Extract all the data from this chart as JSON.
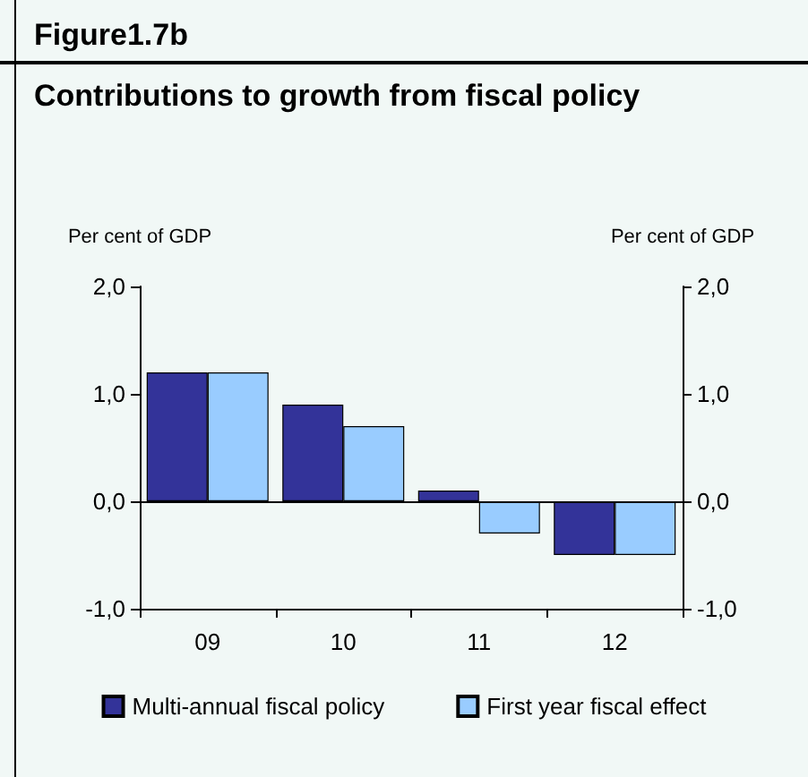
{
  "chart_data": {
    "type": "bar",
    "title": "Figure1.7b",
    "subtitle": "Contributions to growth from fiscal policy",
    "ylabel": "Per cent of GDP",
    "y2label": "Per cent of GDP",
    "categories": [
      "09",
      "10",
      "11",
      "12"
    ],
    "series": [
      {
        "name": "Multi-annual fiscal policy",
        "color": "#333399",
        "values": [
          1.2,
          0.9,
          0.1,
          -0.5
        ]
      },
      {
        "name": "First year fiscal effect",
        "color": "#99ccff",
        "values": [
          1.2,
          0.7,
          -0.3,
          -0.5
        ]
      }
    ],
    "ylim": [
      -1,
      2
    ],
    "yticks": [
      {
        "value": -1,
        "label": "-1,0"
      },
      {
        "value": 0,
        "label": "0,0"
      },
      {
        "value": 1,
        "label": "1,0"
      },
      {
        "value": 2,
        "label": "2,0"
      }
    ],
    "y2lim": [
      -1,
      2
    ],
    "y2ticks": [
      {
        "value": -1,
        "label": "-1,0"
      },
      {
        "value": 0,
        "label": "0,0"
      },
      {
        "value": 1,
        "label": "1,0"
      },
      {
        "value": 2,
        "label": "2,0"
      }
    ],
    "ref_lines": [
      {
        "axis": "y",
        "value": 0,
        "color": "#000000"
      }
    ],
    "grid": false,
    "legend": "bottom"
  }
}
